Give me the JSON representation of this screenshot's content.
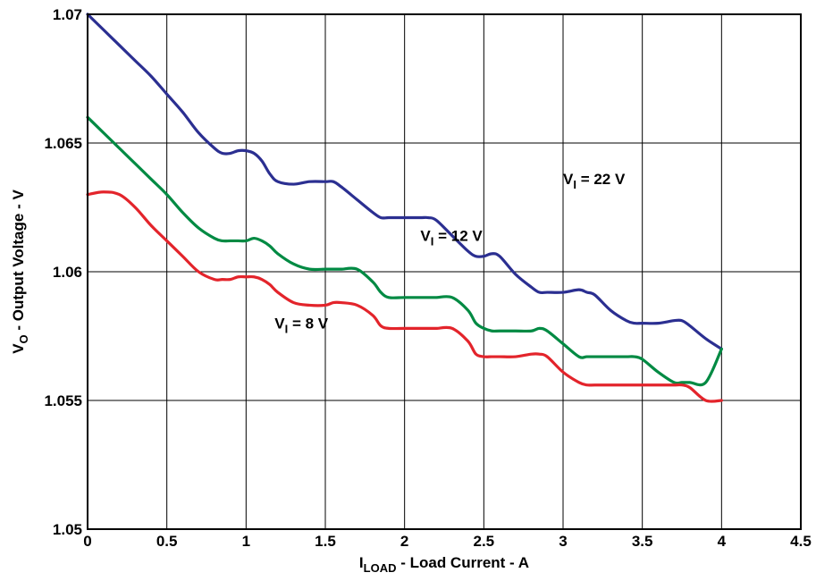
{
  "chart_data": {
    "type": "line",
    "title": "",
    "xlabel": {
      "main": "I",
      "sub": "LOAD",
      "rest": " - Load Current - A"
    },
    "ylabel": {
      "main": "V",
      "sub": "O",
      "rest": " - Output Voltage - V"
    },
    "xlim": [
      0,
      4.5
    ],
    "ylim": [
      1.05,
      1.07
    ],
    "xticks": [
      0,
      0.5,
      1,
      1.5,
      2,
      2.5,
      3,
      3.5,
      4,
      4.5
    ],
    "xtick_labels": [
      "0",
      "0.5",
      "1",
      "1.5",
      "2",
      "2.5",
      "3",
      "3.5",
      "4",
      "4.5"
    ],
    "yticks": [
      1.05,
      1.055,
      1.06,
      1.065,
      1.07
    ],
    "ytick_labels": [
      "1.05",
      "1.055",
      "1.06",
      "1.065",
      "1.07"
    ],
    "grid": true,
    "legend": "inline labels",
    "series": [
      {
        "label_main": "V",
        "label_sub": "I",
        "label_rest": " = 22 V",
        "label_at": [
          3.0,
          1.0634
        ],
        "color": "#2b2f91",
        "x": [
          0,
          0.1,
          0.2,
          0.3,
          0.4,
          0.5,
          0.6,
          0.7,
          0.8,
          0.85,
          0.9,
          0.95,
          1.0,
          1.05,
          1.1,
          1.15,
          1.2,
          1.3,
          1.4,
          1.5,
          1.55,
          1.6,
          1.7,
          1.8,
          1.85,
          1.9,
          2.0,
          2.1,
          2.15,
          2.2,
          2.3,
          2.4,
          2.45,
          2.5,
          2.55,
          2.6,
          2.7,
          2.8,
          2.85,
          2.9,
          3.0,
          3.1,
          3.15,
          3.2,
          3.3,
          3.4,
          3.45,
          3.5,
          3.6,
          3.7,
          3.75,
          3.8,
          3.9,
          4.0
        ],
        "y": [
          1.07,
          1.0694,
          1.0688,
          1.0682,
          1.0676,
          1.0669,
          1.0662,
          1.0654,
          1.0648,
          1.0646,
          1.0646,
          1.0647,
          1.0647,
          1.0646,
          1.0643,
          1.0638,
          1.0635,
          1.0634,
          1.0635,
          1.0635,
          1.0635,
          1.0633,
          1.0628,
          1.0623,
          1.0621,
          1.0621,
          1.0621,
          1.0621,
          1.0621,
          1.062,
          1.0614,
          1.0608,
          1.0606,
          1.0606,
          1.0607,
          1.0606,
          1.0599,
          1.0594,
          1.0592,
          1.0592,
          1.0592,
          1.0593,
          1.0592,
          1.0591,
          1.0585,
          1.0581,
          1.058,
          1.058,
          1.058,
          1.0581,
          1.0581,
          1.0579,
          1.0574,
          1.057
        ]
      },
      {
        "label_main": "V",
        "label_sub": "I",
        "label_rest": " = 12 V",
        "label_at": [
          2.1,
          1.0612
        ],
        "color": "#008a43",
        "x": [
          0,
          0.1,
          0.2,
          0.3,
          0.4,
          0.5,
          0.6,
          0.7,
          0.8,
          0.85,
          0.9,
          0.95,
          1.0,
          1.05,
          1.1,
          1.15,
          1.2,
          1.3,
          1.4,
          1.5,
          1.55,
          1.6,
          1.7,
          1.8,
          1.85,
          1.9,
          2.0,
          2.1,
          2.15,
          2.2,
          2.3,
          2.4,
          2.45,
          2.5,
          2.55,
          2.6,
          2.7,
          2.8,
          2.85,
          2.9,
          3.0,
          3.1,
          3.15,
          3.2,
          3.3,
          3.4,
          3.45,
          3.5,
          3.6,
          3.7,
          3.75,
          3.8,
          3.9,
          4.0
        ],
        "y": [
          1.066,
          1.0654,
          1.0648,
          1.0642,
          1.0636,
          1.063,
          1.0623,
          1.0617,
          1.0613,
          1.0612,
          1.0612,
          1.0612,
          1.0612,
          1.0613,
          1.0612,
          1.061,
          1.0607,
          1.0603,
          1.0601,
          1.0601,
          1.0601,
          1.0601,
          1.0601,
          1.0596,
          1.0592,
          1.059,
          1.059,
          1.059,
          1.059,
          1.059,
          1.059,
          1.0585,
          1.058,
          1.0578,
          1.0577,
          1.0577,
          1.0577,
          1.0577,
          1.0578,
          1.0577,
          1.0572,
          1.0567,
          1.0567,
          1.0567,
          1.0567,
          1.0567,
          1.0567,
          1.0566,
          1.0561,
          1.0557,
          1.0557,
          1.0557,
          1.0557,
          1.057
        ]
      },
      {
        "label_main": "V",
        "label_sub": "I",
        "label_rest": " = 8 V",
        "label_at": [
          1.18,
          1.0578
        ],
        "color": "#e3242b",
        "x": [
          0,
          0.1,
          0.2,
          0.3,
          0.4,
          0.5,
          0.6,
          0.7,
          0.8,
          0.85,
          0.9,
          0.95,
          1.0,
          1.05,
          1.1,
          1.15,
          1.2,
          1.3,
          1.4,
          1.5,
          1.55,
          1.6,
          1.7,
          1.8,
          1.85,
          1.9,
          2.0,
          2.1,
          2.15,
          2.2,
          2.3,
          2.4,
          2.45,
          2.5,
          2.55,
          2.6,
          2.7,
          2.8,
          2.85,
          2.9,
          3.0,
          3.1,
          3.15,
          3.2,
          3.3,
          3.4,
          3.45,
          3.5,
          3.6,
          3.7,
          3.75,
          3.8,
          3.9,
          4.0
        ],
        "y": [
          1.063,
          1.0631,
          1.063,
          1.0625,
          1.0618,
          1.0612,
          1.0606,
          1.06,
          1.0597,
          1.0597,
          1.0597,
          1.0598,
          1.0598,
          1.0598,
          1.0597,
          1.0595,
          1.0592,
          1.0588,
          1.0587,
          1.0587,
          1.0588,
          1.0588,
          1.0587,
          1.0583,
          1.0579,
          1.0578,
          1.0578,
          1.0578,
          1.0578,
          1.0578,
          1.0578,
          1.0573,
          1.0568,
          1.0567,
          1.0567,
          1.0567,
          1.0567,
          1.0568,
          1.0568,
          1.0567,
          1.0561,
          1.0557,
          1.0556,
          1.0556,
          1.0556,
          1.0556,
          1.0556,
          1.0556,
          1.0556,
          1.0556,
          1.0556,
          1.0555,
          1.055,
          1.055
        ]
      }
    ]
  }
}
